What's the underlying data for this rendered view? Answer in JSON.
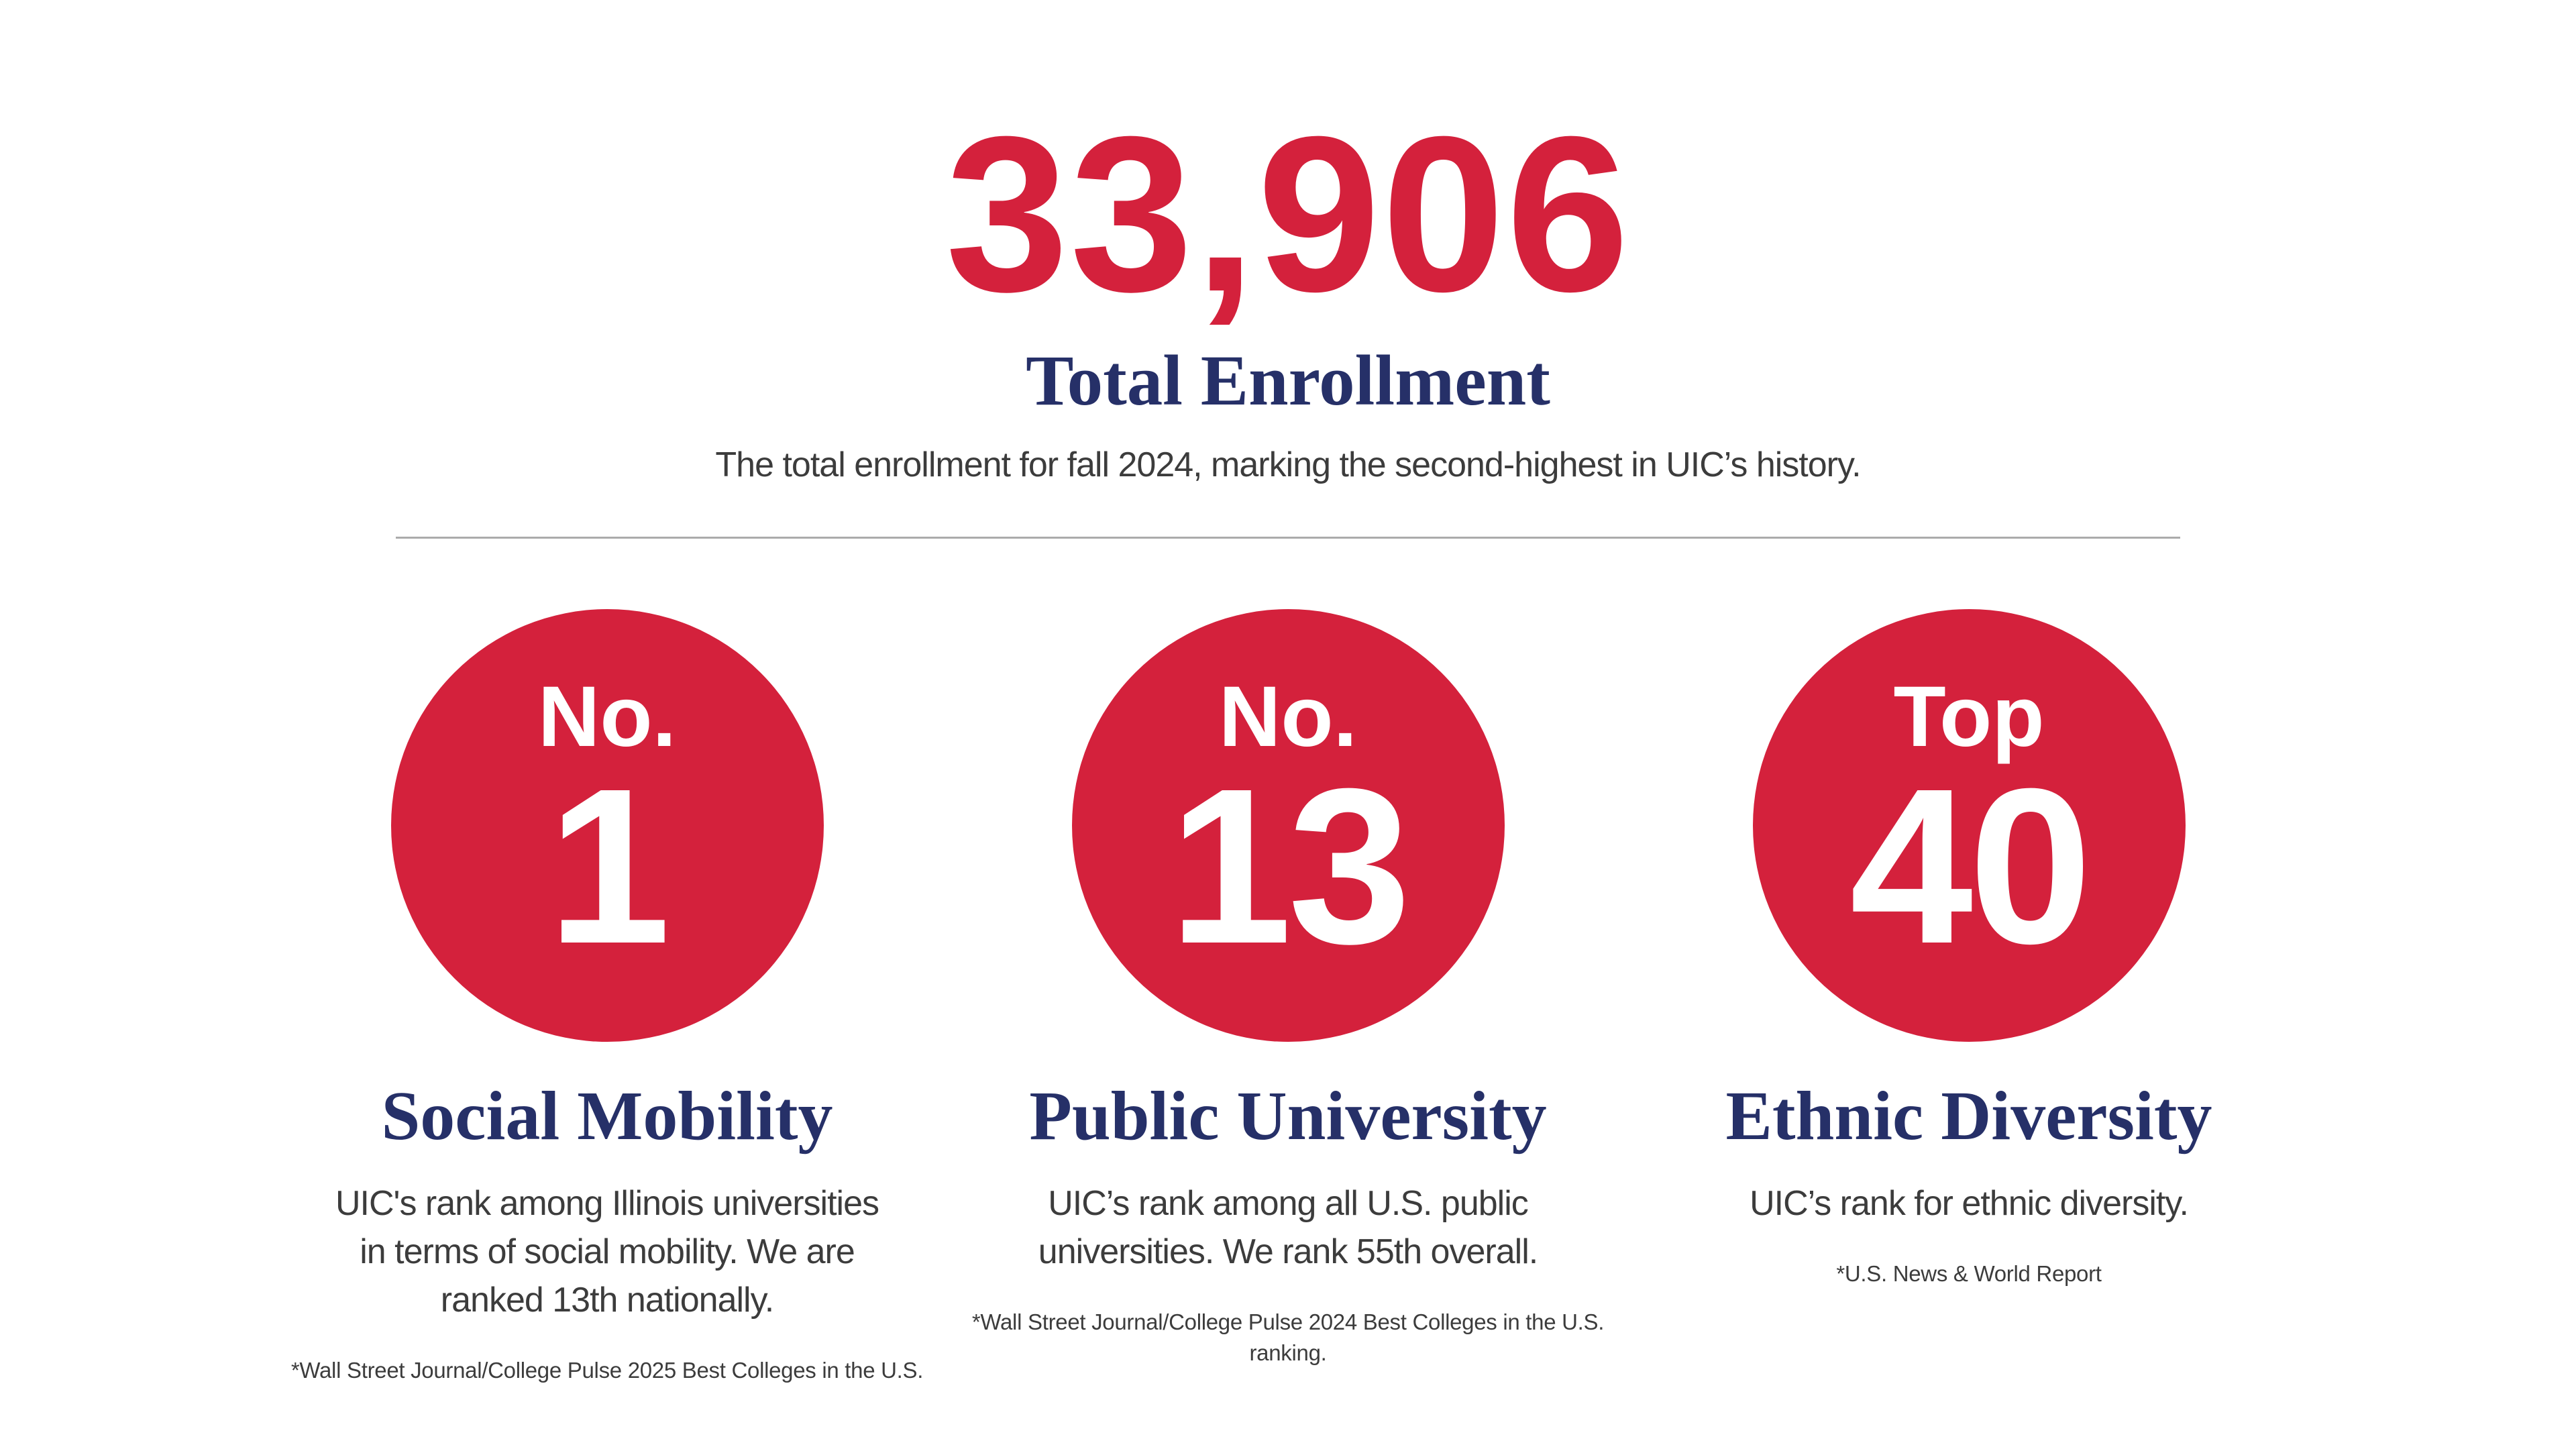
{
  "colors": {
    "red": "#d4213c",
    "navy": "#263068",
    "text": "#3c3c3c",
    "divider": "#ababab",
    "white": "#ffffff"
  },
  "hero": {
    "stat_value": "33,906",
    "stat_label": "Total Enrollment",
    "description": "The total enrollment for fall 2024, marking the second-highest in UIC’s history."
  },
  "cards": [
    {
      "badge_prefix": "No.",
      "badge_value": "1",
      "title": "Social Mobility",
      "description": "UIC's rank among Illinois universities\nin terms of social mobility. We are\nranked 13th nationally.",
      "footnote": "*Wall Street Journal/College Pulse 2025 Best Colleges in the U.S."
    },
    {
      "badge_prefix": "No.",
      "badge_value": "13",
      "title": "Public University",
      "description": "UIC’s rank among all U.S. public\nuniversities. We rank 55th overall.",
      "footnote": "*Wall Street Journal/College Pulse 2024 Best Colleges in the U.S.\nranking."
    },
    {
      "badge_prefix": "Top",
      "badge_value": "40",
      "title": "Ethnic Diversity",
      "description": "UIC’s rank for ethnic diversity.",
      "footnote": "*U.S. News & World Report"
    }
  ]
}
